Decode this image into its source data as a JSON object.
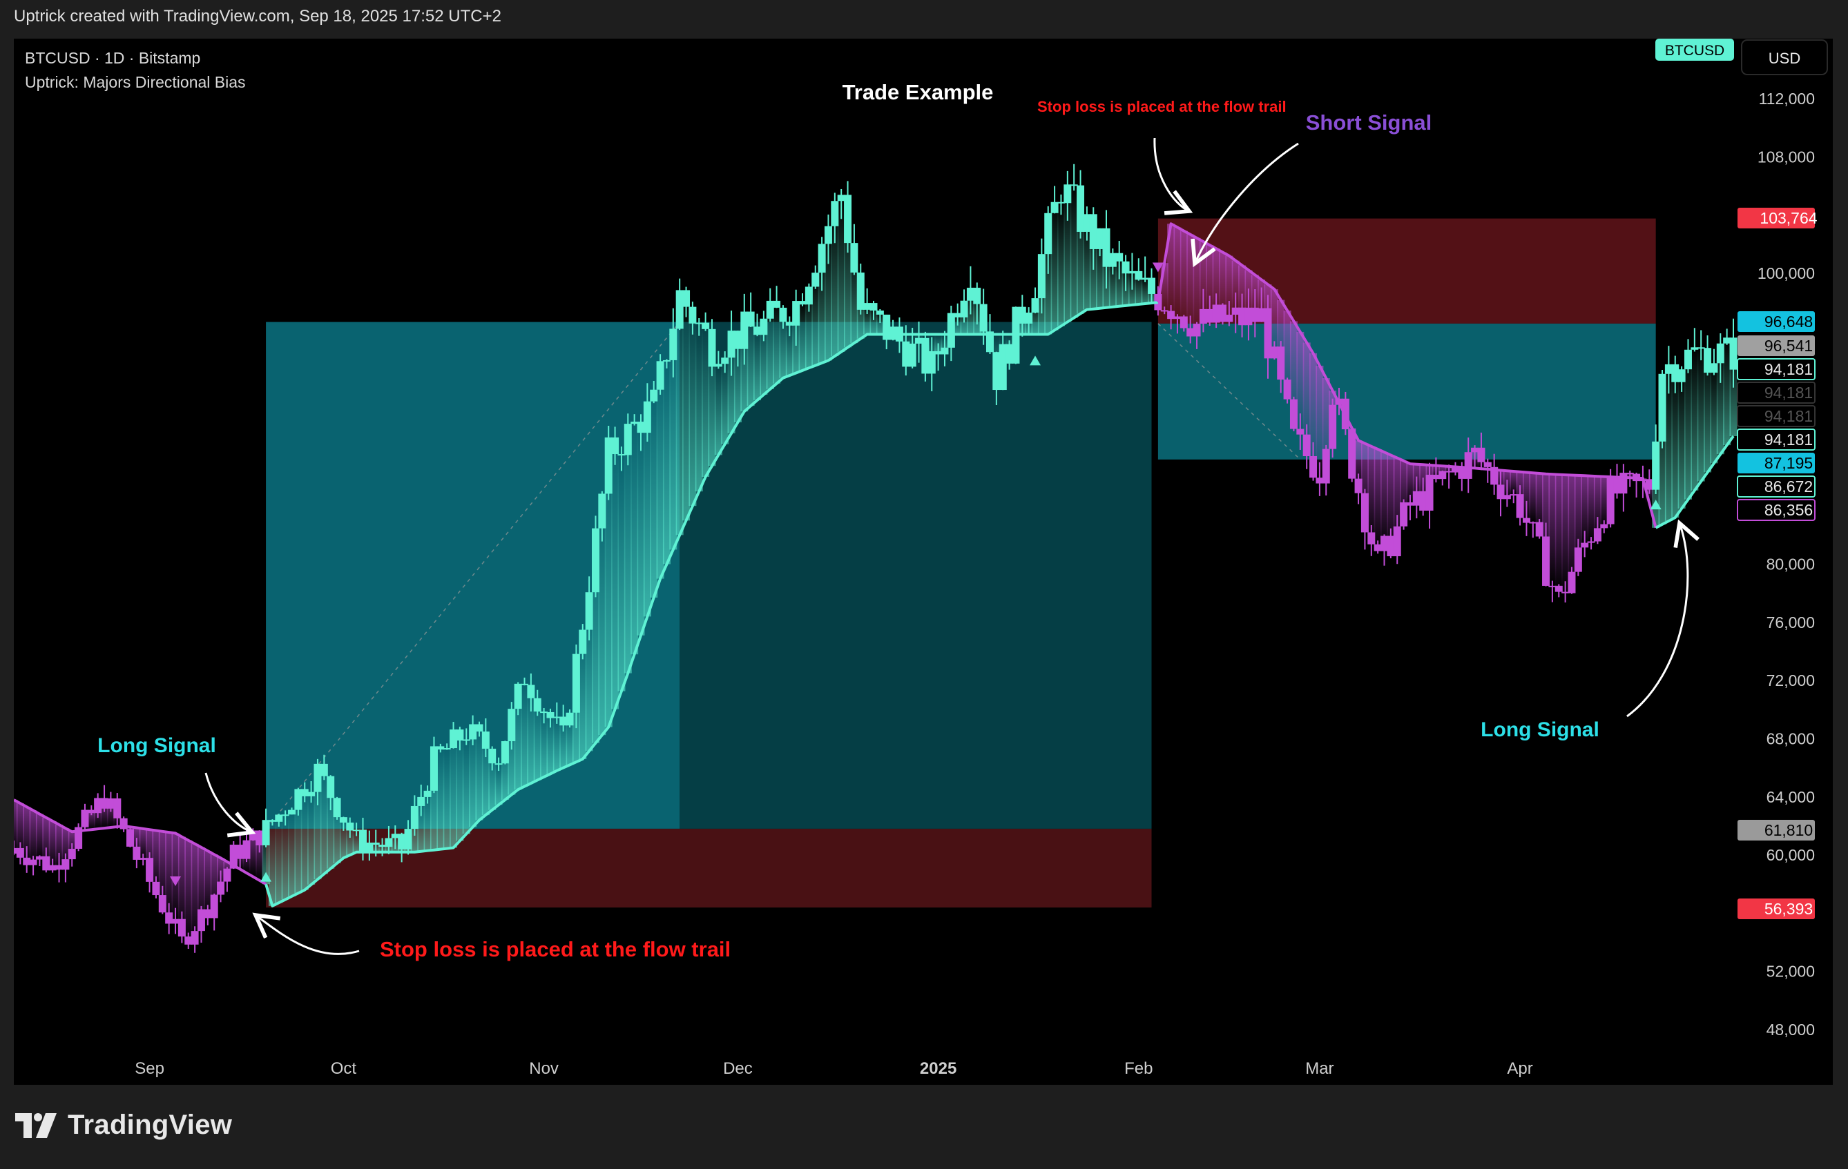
{
  "header": {
    "attribution": "Uptrick created with TradingView.com, Sep 18, 2025 17:52 UTC+2"
  },
  "legend": {
    "symbol_line": "BTCUSD · 1D · Bitstamp",
    "indicator_line": "Uptrick: Majors Directional Bias"
  },
  "top_right": {
    "symbol_badge": "BTCUSD",
    "currency_button": "USD"
  },
  "footer": {
    "brand": "TradingView"
  },
  "colors": {
    "bull": "#5ff2d4",
    "bear": "#c24dd8",
    "red_label": "#f23645",
    "long_text": "#2de0e8",
    "short_text": "#8a4fd6",
    "stop_text": "#ff1a1a"
  },
  "annotations": {
    "title": "Trade Example",
    "long_signal_left": "Long Signal",
    "long_signal_right": "Long Signal",
    "short_signal": "Short Signal",
    "stop_loss_bottom": "Stop loss is placed at the flow trail",
    "stop_loss_top": "Stop loss is placed at the flow trail"
  },
  "chart_data": {
    "type": "candlestick",
    "symbol": "BTCUSD",
    "timeframe": "1D",
    "exchange": "Bitstamp",
    "ylim": [
      45000,
      115000
    ],
    "y_ticks": [
      48000,
      52000,
      56000,
      60000,
      64000,
      68000,
      72000,
      76000,
      80000,
      84000,
      88000,
      92000,
      96000,
      100000,
      104000,
      108000,
      112000
    ],
    "y_tick_labels": [
      "48,000",
      "52,000",
      "",
      "60,000",
      "64,000",
      "68,000",
      "72,000",
      "76,000",
      "80,000",
      "",
      "",
      "",
      "",
      "100,000",
      "",
      "108,000",
      "112,000"
    ],
    "x_labels": [
      {
        "date": "2024-09-01",
        "label": "Sep",
        "bold": false
      },
      {
        "date": "2024-10-01",
        "label": "Oct",
        "bold": false
      },
      {
        "date": "2024-11-01",
        "label": "Nov",
        "bold": false
      },
      {
        "date": "2024-12-01",
        "label": "Dec",
        "bold": false
      },
      {
        "date": "2025-01-01",
        "label": "2025",
        "bold": true
      },
      {
        "date": "2025-02-01",
        "label": "Feb",
        "bold": false
      },
      {
        "date": "2025-03-01",
        "label": "Mar",
        "bold": false
      },
      {
        "date": "2025-04-01",
        "label": "Apr",
        "bold": false
      }
    ],
    "x_range": [
      "2024-08-11",
      "2025-05-04"
    ],
    "price_labels": [
      {
        "value": 103764,
        "text": "103,764",
        "bg": "#f23645",
        "fg": "#ffffff",
        "border": ""
      },
      {
        "value": 96648,
        "text": "96,648",
        "bg": "#13c2e0",
        "fg": "#000000",
        "border": ""
      },
      {
        "value": 96541,
        "text": "96,541",
        "bg": "#a0a0a0",
        "fg": "#000000",
        "border": ""
      },
      {
        "value": 94181,
        "text": "94,181",
        "bg": "#000000",
        "fg": "#e8e8e8",
        "border": "#5ff2d4"
      },
      {
        "value": 94181,
        "text": "94,181",
        "bg": "#000000",
        "fg": "#555555",
        "border": "#333333"
      },
      {
        "value": 94181,
        "text": "94,181",
        "bg": "#000000",
        "fg": "#555555",
        "border": "#333333"
      },
      {
        "value": 94181,
        "text": "94,181",
        "bg": "#000000",
        "fg": "#e8e8e8",
        "border": "#5ff2d4"
      },
      {
        "value": 87195,
        "text": "87,195",
        "bg": "#13c2e0",
        "fg": "#000000",
        "border": ""
      },
      {
        "value": 86672,
        "text": "86,672",
        "bg": "#000000",
        "fg": "#e8e8e8",
        "border": "#5ff2d4"
      },
      {
        "value": 86356,
        "text": "86,356",
        "bg": "#000000",
        "fg": "#e8e8e8",
        "border": "#c24dd8"
      },
      {
        "value": 61810,
        "text": "61,810",
        "bg": "#9a9a9a",
        "fg": "#000000",
        "border": ""
      },
      {
        "value": 56393,
        "text": "56,393",
        "bg": "#f23645",
        "fg": "#ffffff",
        "border": ""
      }
    ],
    "trades": [
      {
        "direction": "long",
        "start": "2024-09-19",
        "end": "2025-02-03",
        "entry": 61810,
        "target": 96648,
        "stop": 56393,
        "target_hit": "2024-11-22"
      },
      {
        "direction": "short",
        "start": "2025-02-04",
        "end": "2025-04-22",
        "entry": 96541,
        "target": 87195,
        "stop": 103764
      }
    ],
    "signals": [
      {
        "type": "long",
        "date": "2024-09-19",
        "price": 58500
      },
      {
        "type": "short",
        "date": "2024-09-05",
        "price": 58200
      },
      {
        "type": "short",
        "date": "2025-02-04",
        "price": 100400
      },
      {
        "type": "long",
        "date": "2025-01-16",
        "price": 94000
      },
      {
        "type": "long",
        "date": "2025-04-22",
        "price": 84100
      }
    ],
    "flow_trail": [
      [
        "2024-08-11",
        63800
      ],
      [
        "2024-08-20",
        61600
      ],
      [
        "2024-08-28",
        62000
      ],
      [
        "2024-09-05",
        61500
      ],
      [
        "2024-09-12",
        59800
      ],
      [
        "2024-09-19",
        58000
      ],
      [
        "2024-09-20",
        56500
      ],
      [
        "2024-09-25",
        57600
      ],
      [
        "2024-10-01",
        59800
      ],
      [
        "2024-10-03",
        60200
      ],
      [
        "2024-10-12",
        60200
      ],
      [
        "2024-10-18",
        60500
      ],
      [
        "2024-10-22",
        62400
      ],
      [
        "2024-10-28",
        64500
      ],
      [
        "2024-11-03",
        65800
      ],
      [
        "2024-11-07",
        66600
      ],
      [
        "2024-11-11",
        68800
      ],
      [
        "2024-11-14",
        72500
      ],
      [
        "2024-11-19",
        79000
      ],
      [
        "2024-11-26",
        86000
      ],
      [
        "2024-12-02",
        90500
      ],
      [
        "2024-12-08",
        92800
      ],
      [
        "2024-12-15",
        94000
      ],
      [
        "2024-12-21",
        95800
      ],
      [
        "2025-01-10",
        95800
      ],
      [
        "2025-01-18",
        95800
      ],
      [
        "2025-01-24",
        97500
      ],
      [
        "2025-02-04",
        98000
      ],
      [
        "2025-02-06",
        103400
      ],
      [
        "2025-02-15",
        101200
      ],
      [
        "2025-02-22",
        98900
      ],
      [
        "2025-02-28",
        94500
      ],
      [
        "2025-03-07",
        88500
      ],
      [
        "2025-03-15",
        86900
      ],
      [
        "2025-03-25",
        86600
      ],
      [
        "2025-04-05",
        86200
      ],
      [
        "2025-04-20",
        85900
      ],
      [
        "2025-04-22",
        82500
      ],
      [
        "2025-04-25",
        83200
      ],
      [
        "2025-05-04",
        88800
      ]
    ],
    "price_path": [
      [
        "2024-08-11",
        60500
      ],
      [
        "2024-08-17",
        59200
      ],
      [
        "2024-08-25",
        64000
      ],
      [
        "2024-08-31",
        59000
      ],
      [
        "2024-09-06",
        54000
      ],
      [
        "2024-09-10",
        56500
      ],
      [
        "2024-09-14",
        60000
      ],
      [
        "2024-09-19",
        61800
      ],
      [
        "2024-09-27",
        65800
      ],
      [
        "2024-10-03",
        61000
      ],
      [
        "2024-10-10",
        60500
      ],
      [
        "2024-10-15",
        66500
      ],
      [
        "2024-10-20",
        68500
      ],
      [
        "2024-10-25",
        66800
      ],
      [
        "2024-10-29",
        72300
      ],
      [
        "2024-11-04",
        68000
      ],
      [
        "2024-11-07",
        76000
      ],
      [
        "2024-11-11",
        87500
      ],
      [
        "2024-11-18",
        91000
      ],
      [
        "2024-11-22",
        98500
      ],
      [
        "2024-11-27",
        95000
      ],
      [
        "2024-12-05",
        96500
      ],
      [
        "2024-12-10",
        98000
      ],
      [
        "2024-12-17",
        105500
      ],
      [
        "2024-12-20",
        97500
      ],
      [
        "2024-12-31",
        93500
      ],
      [
        "2025-01-06",
        100500
      ],
      [
        "2025-01-10",
        93000
      ],
      [
        "2025-01-16",
        99500
      ],
      [
        "2025-01-20",
        106000
      ],
      [
        "2025-01-27",
        101000
      ],
      [
        "2025-02-01",
        99000
      ],
      [
        "2025-02-04",
        98500
      ],
      [
        "2025-02-10",
        96500
      ],
      [
        "2025-02-20",
        97000
      ],
      [
        "2025-02-25",
        88500
      ],
      [
        "2025-03-01",
        86500
      ],
      [
        "2025-03-03",
        92000
      ],
      [
        "2025-03-10",
        80000
      ],
      [
        "2025-03-15",
        84000
      ],
      [
        "2025-03-25",
        87500
      ],
      [
        "2025-04-01",
        84000
      ],
      [
        "2025-04-07",
        77500
      ],
      [
        "2025-04-10",
        80500
      ],
      [
        "2025-04-15",
        84800
      ],
      [
        "2025-04-21",
        85500
      ],
      [
        "2025-04-23",
        93500
      ],
      [
        "2025-04-28",
        94500
      ],
      [
        "2025-05-04",
        94500
      ]
    ]
  }
}
